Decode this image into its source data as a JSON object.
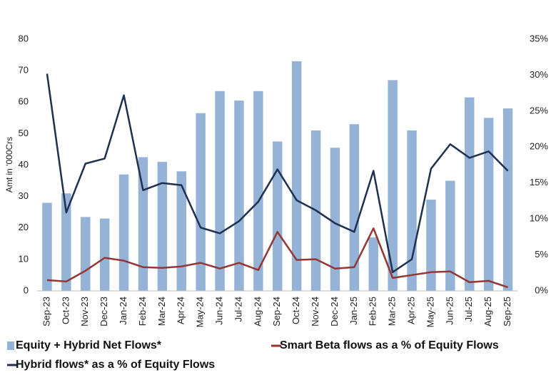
{
  "chart_data": {
    "type": "bar_line",
    "y_label": "Amt in '000Crs",
    "categories": [
      "Sep-23",
      "Oct-23",
      "Nov-23",
      "Dec-23",
      "Jan-24",
      "Feb-24",
      "Mar-24",
      "Apr-24",
      "May-24",
      "Jun-24",
      "Jul-24",
      "Aug-24",
      "Sep-24",
      "Oct-24",
      "Nov-24",
      "Dec-24",
      "Jan-25",
      "Feb-25",
      "Mar-25",
      "Apr-25",
      "May-25",
      "Jun-25",
      "Jul-25",
      "Aug-25",
      "Sep-25"
    ],
    "series": [
      {
        "name": "Equity + Hybrid Net Flows*",
        "color": "#95b3d7",
        "kind": "bar",
        "axis": "y",
        "values": [
          28,
          31,
          23.5,
          23,
          37,
          42.5,
          41,
          38,
          56.5,
          63.5,
          60.5,
          63.5,
          47.5,
          73,
          51,
          45.5,
          53,
          17,
          67,
          51,
          29,
          35,
          61.5,
          55,
          58
        ]
      },
      {
        "name": "Smart Beta flows as a % of Equity Flows",
        "color": "#943634",
        "kind": "line",
        "axis": "y2",
        "values": [
          1.5,
          1.3,
          2.8,
          4.6,
          4.2,
          3.3,
          3.2,
          3.4,
          3.9,
          3.1,
          3.9,
          2.9,
          8.2,
          4.3,
          4.4,
          3.1,
          3.3,
          8.7,
          1.8,
          2.2,
          2.6,
          2.7,
          1.2,
          1.4,
          0.5
        ]
      },
      {
        "name": "Hybrid flows* as a % of Equity Flows",
        "color": "#1f3050",
        "kind": "line",
        "axis": "y2",
        "values": [
          30.2,
          10.9,
          17.7,
          18.4,
          27.2,
          14.0,
          15.0,
          14.7,
          8.8,
          8.0,
          9.7,
          12.4,
          16.9,
          12.6,
          11.2,
          9.4,
          8.2,
          16.7,
          2.6,
          4.4,
          17.0,
          20.4,
          18.5,
          19.4,
          16.7
        ]
      }
    ],
    "ylim": [
      0,
      80
    ],
    "yticks": [
      0,
      10,
      20,
      30,
      40,
      50,
      60,
      70,
      80
    ],
    "y2lim": [
      0,
      35
    ],
    "y2ticks": [
      {
        "value": 0,
        "label": "0%"
      },
      {
        "value": 5,
        "label": "5%"
      },
      {
        "value": 10,
        "label": "10%"
      },
      {
        "value": 15,
        "label": "15%"
      },
      {
        "value": 20,
        "label": "20%"
      },
      {
        "value": 25,
        "label": "25%"
      },
      {
        "value": 30,
        "label": "30%"
      },
      {
        "value": 35,
        "label": "35%"
      }
    ],
    "grid": false
  }
}
